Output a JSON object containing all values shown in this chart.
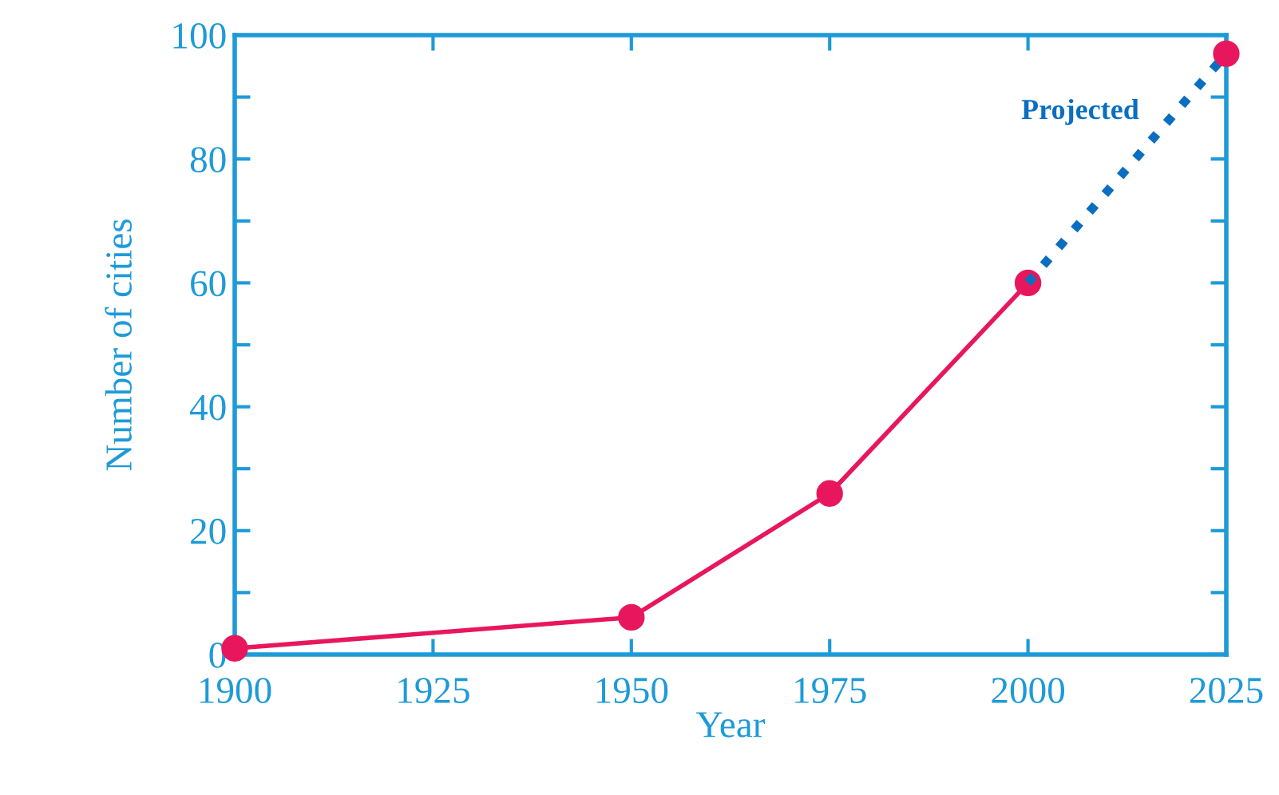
{
  "chart_data": {
    "type": "line",
    "xlabel": "Year",
    "ylabel": "Number of cities",
    "xlim": [
      1900,
      2025
    ],
    "ylim": [
      0,
      100
    ],
    "xticks": [
      1900,
      1925,
      1950,
      1975,
      2000,
      2025
    ],
    "yticks": [
      0,
      {
        "value": 10,
        "label": null
      },
      20,
      {
        "value": 30,
        "label": null
      },
      40,
      {
        "value": 50,
        "label": null
      },
      60,
      {
        "value": 70,
        "label": null
      },
      80,
      {
        "value": 90,
        "label": null
      },
      100
    ],
    "grid": false,
    "legend": false,
    "series": [
      {
        "color": "#e8175d",
        "marker": "circle",
        "line_style": "solid",
        "x": [
          1900,
          1950,
          1975,
          2000
        ],
        "values": [
          1,
          6,
          26,
          60
        ]
      },
      {
        "name": "Projected",
        "color": "#0a6fc0",
        "marker": "none",
        "line_style": "dotted",
        "x": [
          2000,
          2025
        ],
        "values": [
          60,
          97
        ]
      },
      {
        "type": "scatter",
        "color": "#e8175d",
        "marker": "circle",
        "x": [
          2025
        ],
        "values": [
          97
        ]
      }
    ]
  }
}
